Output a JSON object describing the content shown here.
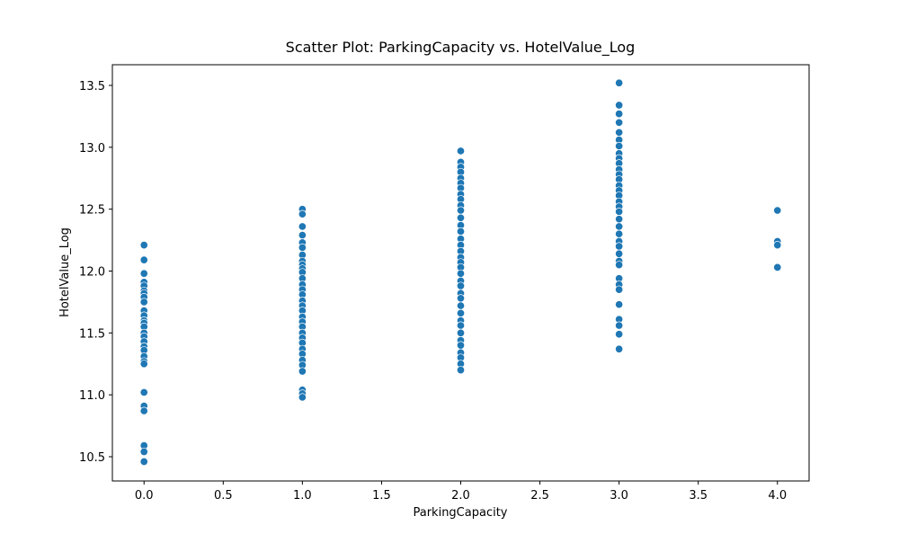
{
  "chart_data": {
    "type": "scatter",
    "title": "Scatter Plot: ParkingCapacity vs. HotelValue_Log",
    "x_label": "ParkingCapacity",
    "y_label": "HotelValue_Log",
    "color": "#1f77b4",
    "xlim": [
      -0.2,
      4.2
    ],
    "ylim": [
      10.304,
      13.667
    ],
    "xticks": [
      {
        "value": 0,
        "label": "0.0"
      },
      0.5,
      {
        "value": 1,
        "label": "1.0"
      },
      1.5,
      {
        "value": 2,
        "label": "2.0"
      },
      2.5,
      {
        "value": 3,
        "label": "3.0"
      },
      3.5,
      {
        "value": 4,
        "label": "4.0"
      }
    ],
    "yticks": [
      10.5,
      {
        "value": 11,
        "label": "11.0"
      },
      11.5,
      {
        "value": 12,
        "label": "12.0"
      },
      12.5,
      {
        "value": 13,
        "label": "13.0"
      },
      13.5
    ],
    "x": [
      0,
      0,
      0,
      0,
      0,
      0,
      0,
      0,
      0,
      0,
      0,
      0,
      0,
      0,
      0,
      0,
      0,
      0,
      0,
      0,
      0,
      0,
      0,
      0,
      0,
      0,
      0,
      0,
      1,
      1,
      1,
      1,
      1,
      1,
      1,
      1,
      1,
      1,
      1,
      1,
      1,
      1,
      1,
      1,
      1,
      1,
      1,
      1,
      1,
      1,
      1,
      1,
      1,
      1,
      1,
      1,
      1,
      1,
      1,
      1,
      2,
      2,
      2,
      2,
      2,
      2,
      2,
      2,
      2,
      2,
      2,
      2,
      2,
      2,
      2,
      2,
      2,
      2,
      2,
      2,
      2,
      2,
      2,
      2,
      2,
      2,
      2,
      2,
      2,
      2,
      2,
      2,
      2,
      2,
      2,
      2,
      3,
      3,
      3,
      3,
      3,
      3,
      3,
      3,
      3,
      3,
      3,
      3,
      3,
      3,
      3,
      3,
      3,
      3,
      3,
      3,
      3,
      3,
      3,
      3,
      3,
      3,
      3,
      3,
      3,
      3,
      3,
      3,
      3,
      3,
      3,
      4,
      4,
      4,
      4
    ],
    "y": [
      12.21,
      12.09,
      11.98,
      11.91,
      11.88,
      11.84,
      11.82,
      11.79,
      11.75,
      11.68,
      11.64,
      11.6,
      11.58,
      11.55,
      11.5,
      11.47,
      11.43,
      11.39,
      11.36,
      11.31,
      11.27,
      11.25,
      11.02,
      10.91,
      10.87,
      10.59,
      10.54,
      10.46,
      12.5,
      12.46,
      12.36,
      12.29,
      12.23,
      12.19,
      12.13,
      12.08,
      12.05,
      12.02,
      11.99,
      11.94,
      11.89,
      11.85,
      11.81,
      11.76,
      11.72,
      11.68,
      11.63,
      11.59,
      11.55,
      11.5,
      11.46,
      11.42,
      11.37,
      11.33,
      11.28,
      11.24,
      11.19,
      11.04,
      11.01,
      10.98,
      12.97,
      12.88,
      12.84,
      12.8,
      12.75,
      12.71,
      12.67,
      12.62,
      12.58,
      12.53,
      12.49,
      12.43,
      12.37,
      12.32,
      12.26,
      12.21,
      12.16,
      12.11,
      12.07,
      12.03,
      11.98,
      11.92,
      11.88,
      11.82,
      11.78,
      11.72,
      11.66,
      11.6,
      11.56,
      11.5,
      11.44,
      11.4,
      11.34,
      11.3,
      11.25,
      11.2,
      13.52,
      13.34,
      13.27,
      13.2,
      13.12,
      13.06,
      13.01,
      12.95,
      12.91,
      12.87,
      12.82,
      12.78,
      12.74,
      12.69,
      12.65,
      12.61,
      12.56,
      12.52,
      12.48,
      12.42,
      12.36,
      12.3,
      12.24,
      12.2,
      12.14,
      12.08,
      12.05,
      11.94,
      11.89,
      11.85,
      11.73,
      11.61,
      11.56,
      11.49,
      11.37,
      12.49,
      12.24,
      12.21,
      12.03
    ]
  }
}
